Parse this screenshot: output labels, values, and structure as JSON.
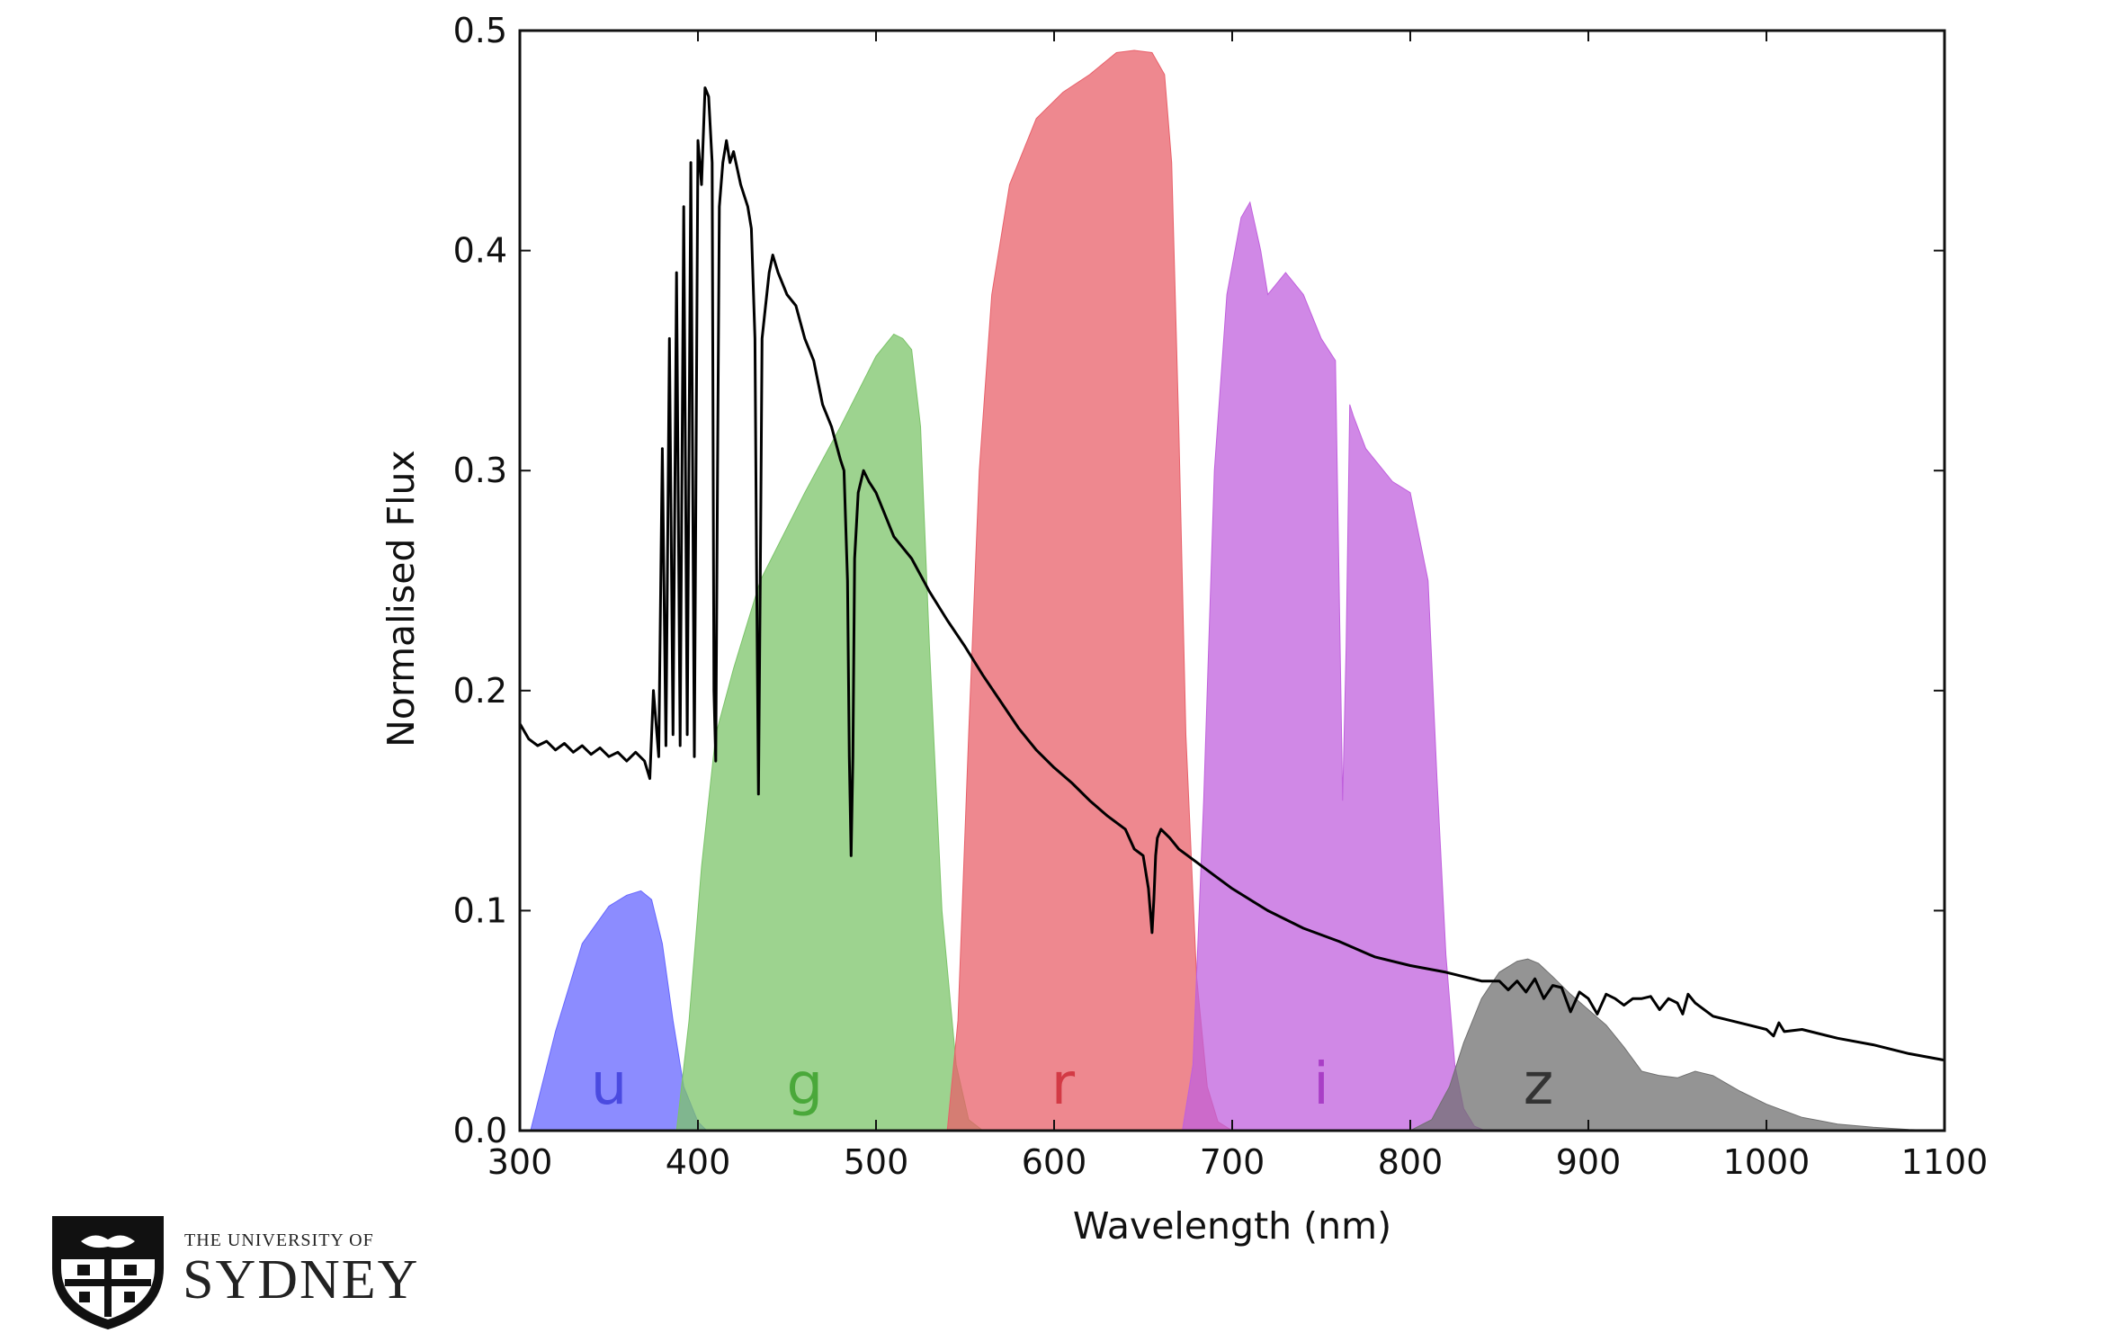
{
  "chart_data": {
    "type": "area",
    "title": "",
    "xlabel": "Wavelength (nm)",
    "ylabel": "Normalised Flux",
    "xlim": [
      300,
      1100
    ],
    "ylim": [
      0.0,
      0.5
    ],
    "xticks": [
      "300",
      "400",
      "500",
      "600",
      "700",
      "800",
      "900",
      "1000",
      "1100"
    ],
    "yticks": [
      "0.0",
      "0.1",
      "0.2",
      "0.3",
      "0.4",
      "0.5"
    ],
    "grid": false,
    "filters": [
      {
        "label": "u",
        "fill": "#6666ff",
        "label_color": "#4a4ae0",
        "label_x": 350,
        "x": [
          306,
          320,
          335,
          350,
          360,
          368,
          374,
          380,
          386,
          392,
          400,
          405
        ],
        "y": [
          0.0,
          0.045,
          0.085,
          0.102,
          0.107,
          0.109,
          0.105,
          0.085,
          0.05,
          0.02,
          0.004,
          0.0
        ]
      },
      {
        "label": "g",
        "fill": "#7cc46a",
        "label_color": "#4aa83a",
        "label_x": 460,
        "x": [
          388,
          395,
          402,
          410,
          420,
          435,
          460,
          480,
          500,
          510,
          515,
          520,
          525,
          530,
          537,
          545,
          552,
          560
        ],
        "y": [
          0.0,
          0.05,
          0.12,
          0.18,
          0.21,
          0.25,
          0.29,
          0.32,
          0.352,
          0.362,
          0.36,
          0.355,
          0.32,
          0.22,
          0.1,
          0.03,
          0.005,
          0.0
        ]
      },
      {
        "label": "r",
        "fill": "#e8606a",
        "label_color": "#d33a45",
        "label_x": 605,
        "x": [
          540,
          546,
          552,
          558,
          565,
          575,
          590,
          605,
          620,
          635,
          645,
          655,
          662,
          666,
          670,
          674,
          680,
          686,
          692,
          700
        ],
        "y": [
          0.0,
          0.05,
          0.18,
          0.3,
          0.38,
          0.43,
          0.46,
          0.472,
          0.48,
          0.49,
          0.491,
          0.49,
          0.48,
          0.44,
          0.32,
          0.18,
          0.07,
          0.02,
          0.004,
          0.0
        ]
      },
      {
        "label": "i",
        "fill": "#c060dd",
        "label_color": "#a93ec6",
        "label_x": 750,
        "x": [
          672,
          678,
          684,
          690,
          697,
          705,
          710,
          716,
          720,
          730,
          740,
          750,
          758,
          760,
          762,
          764,
          766,
          768,
          775,
          790,
          800,
          810,
          815,
          820,
          825,
          830,
          836,
          842
        ],
        "y": [
          0.0,
          0.03,
          0.15,
          0.3,
          0.38,
          0.415,
          0.422,
          0.4,
          0.38,
          0.39,
          0.38,
          0.36,
          0.35,
          0.25,
          0.15,
          0.22,
          0.33,
          0.325,
          0.31,
          0.295,
          0.29,
          0.25,
          0.16,
          0.08,
          0.03,
          0.01,
          0.002,
          0.0
        ]
      },
      {
        "label": "z",
        "fill": "#707070",
        "label_color": "#333333",
        "label_x": 872,
        "x": [
          800,
          812,
          822,
          830,
          840,
          850,
          860,
          866,
          872,
          880,
          890,
          900,
          910,
          920,
          930,
          940,
          950,
          960,
          970,
          985,
          1000,
          1020,
          1040,
          1060,
          1080,
          1100
        ],
        "y": [
          0.0,
          0.005,
          0.02,
          0.04,
          0.06,
          0.072,
          0.077,
          0.078,
          0.076,
          0.07,
          0.062,
          0.055,
          0.048,
          0.038,
          0.027,
          0.025,
          0.024,
          0.027,
          0.025,
          0.018,
          0.012,
          0.006,
          0.003,
          0.0015,
          0.0005,
          0.0
        ]
      }
    ],
    "series": [
      {
        "name": "",
        "color": "#000000",
        "x": [
          300,
          305,
          310,
          315,
          320,
          325,
          330,
          335,
          340,
          345,
          350,
          355,
          360,
          365,
          370,
          373,
          375,
          378,
          380,
          382,
          384,
          386,
          388,
          390,
          392,
          394,
          396,
          398,
          400,
          402,
          404,
          406,
          408,
          409,
          410,
          411,
          412,
          414,
          416,
          418,
          420,
          424,
          428,
          430,
          432,
          433,
          434,
          435,
          436,
          438,
          440,
          442,
          445,
          450,
          455,
          460,
          465,
          470,
          475,
          480,
          482,
          484,
          485,
          486,
          487,
          488,
          490,
          493,
          496,
          500,
          505,
          510,
          515,
          520,
          530,
          540,
          550,
          560,
          570,
          580,
          590,
          600,
          610,
          620,
          630,
          640,
          645,
          650,
          653,
          655,
          656,
          657,
          658,
          660,
          665,
          670,
          680,
          690,
          700,
          720,
          740,
          760,
          780,
          800,
          820,
          840,
          850,
          855,
          860,
          865,
          870,
          875,
          880,
          885,
          890,
          895,
          900,
          905,
          910,
          915,
          920,
          925,
          930,
          935,
          940,
          945,
          950,
          953,
          956,
          960,
          970,
          980,
          990,
          1000,
          1004,
          1007,
          1010,
          1020,
          1040,
          1060,
          1080,
          1100
        ],
        "y": [
          0.185,
          0.178,
          0.175,
          0.177,
          0.173,
          0.176,
          0.172,
          0.175,
          0.171,
          0.174,
          0.17,
          0.172,
          0.168,
          0.172,
          0.168,
          0.16,
          0.2,
          0.17,
          0.31,
          0.175,
          0.36,
          0.18,
          0.39,
          0.175,
          0.42,
          0.18,
          0.44,
          0.17,
          0.45,
          0.43,
          0.474,
          0.47,
          0.44,
          0.2,
          0.168,
          0.3,
          0.42,
          0.44,
          0.45,
          0.44,
          0.445,
          0.43,
          0.42,
          0.41,
          0.36,
          0.25,
          0.153,
          0.25,
          0.36,
          0.375,
          0.39,
          0.398,
          0.39,
          0.38,
          0.375,
          0.36,
          0.35,
          0.33,
          0.32,
          0.305,
          0.3,
          0.25,
          0.17,
          0.125,
          0.17,
          0.26,
          0.29,
          0.3,
          0.295,
          0.29,
          0.28,
          0.27,
          0.265,
          0.26,
          0.245,
          0.232,
          0.22,
          0.207,
          0.195,
          0.183,
          0.173,
          0.165,
          0.158,
          0.15,
          0.143,
          0.137,
          0.128,
          0.125,
          0.11,
          0.09,
          0.105,
          0.125,
          0.133,
          0.137,
          0.133,
          0.128,
          0.122,
          0.116,
          0.11,
          0.1,
          0.092,
          0.086,
          0.079,
          0.075,
          0.072,
          0.068,
          0.068,
          0.064,
          0.068,
          0.063,
          0.069,
          0.06,
          0.066,
          0.065,
          0.054,
          0.063,
          0.06,
          0.053,
          0.062,
          0.06,
          0.057,
          0.06,
          0.06,
          0.061,
          0.055,
          0.06,
          0.058,
          0.053,
          0.062,
          0.058,
          0.052,
          0.05,
          0.048,
          0.046,
          0.043,
          0.049,
          0.045,
          0.046,
          0.042,
          0.039,
          0.035,
          0.032
        ]
      }
    ]
  },
  "logo": {
    "line1": "THE UNIVERSITY OF",
    "line2": "SYDNEY"
  }
}
